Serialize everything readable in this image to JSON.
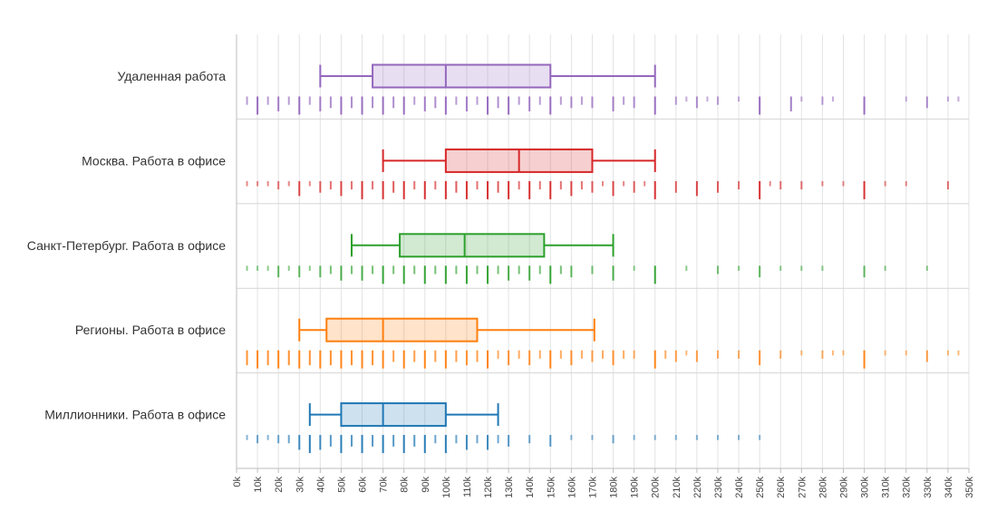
{
  "chart_data": {
    "type": "boxplot",
    "title": "",
    "xlabel": "",
    "ylabel": "",
    "xlim": [
      0,
      350000
    ],
    "x_ticks": [
      0,
      10000,
      20000,
      30000,
      40000,
      50000,
      60000,
      70000,
      80000,
      90000,
      100000,
      110000,
      120000,
      130000,
      140000,
      150000,
      160000,
      170000,
      180000,
      190000,
      200000,
      210000,
      220000,
      230000,
      240000,
      250000,
      260000,
      270000,
      280000,
      290000,
      300000,
      310000,
      320000,
      330000,
      340000,
      350000
    ],
    "x_tick_labels": [
      "0k",
      "10k",
      "20k",
      "30k",
      "40k",
      "50k",
      "60k",
      "70k",
      "80k",
      "90k",
      "100k",
      "110k",
      "120k",
      "130k",
      "140k",
      "150k",
      "160k",
      "170k",
      "180k",
      "190k",
      "200k",
      "210k",
      "220k",
      "230k",
      "240k",
      "250k",
      "260k",
      "270k",
      "280k",
      "290k",
      "300k",
      "310k",
      "320k",
      "330k",
      "340k",
      "350k"
    ],
    "grid": true,
    "series": [
      {
        "name": "Удаленная работа",
        "color": "#9467bd",
        "box": {
          "whisker_low": 40000,
          "q1": 65000,
          "median": 100000,
          "q3": 150000,
          "whisker_high": 200000
        },
        "rug": [
          {
            "x": 5000,
            "n": 2
          },
          {
            "x": 10000,
            "n": 5
          },
          {
            "x": 15000,
            "n": 2
          },
          {
            "x": 20000,
            "n": 4
          },
          {
            "x": 25000,
            "n": 2
          },
          {
            "x": 30000,
            "n": 5
          },
          {
            "x": 35000,
            "n": 2
          },
          {
            "x": 40000,
            "n": 4
          },
          {
            "x": 45000,
            "n": 3
          },
          {
            "x": 50000,
            "n": 5
          },
          {
            "x": 55000,
            "n": 3
          },
          {
            "x": 60000,
            "n": 5
          },
          {
            "x": 65000,
            "n": 3
          },
          {
            "x": 70000,
            "n": 5
          },
          {
            "x": 75000,
            "n": 3
          },
          {
            "x": 80000,
            "n": 5
          },
          {
            "x": 85000,
            "n": 2
          },
          {
            "x": 90000,
            "n": 4
          },
          {
            "x": 95000,
            "n": 3
          },
          {
            "x": 100000,
            "n": 5
          },
          {
            "x": 105000,
            "n": 2
          },
          {
            "x": 110000,
            "n": 4
          },
          {
            "x": 115000,
            "n": 2
          },
          {
            "x": 120000,
            "n": 5
          },
          {
            "x": 125000,
            "n": 3
          },
          {
            "x": 130000,
            "n": 5
          },
          {
            "x": 135000,
            "n": 2
          },
          {
            "x": 140000,
            "n": 4
          },
          {
            "x": 145000,
            "n": 2
          },
          {
            "x": 150000,
            "n": 5
          },
          {
            "x": 155000,
            "n": 2
          },
          {
            "x": 160000,
            "n": 3
          },
          {
            "x": 165000,
            "n": 2
          },
          {
            "x": 170000,
            "n": 3
          },
          {
            "x": 180000,
            "n": 4
          },
          {
            "x": 185000,
            "n": 2
          },
          {
            "x": 190000,
            "n": 3
          },
          {
            "x": 200000,
            "n": 5
          },
          {
            "x": 210000,
            "n": 2
          },
          {
            "x": 215000,
            "n": 1
          },
          {
            "x": 220000,
            "n": 3
          },
          {
            "x": 225000,
            "n": 1
          },
          {
            "x": 230000,
            "n": 2
          },
          {
            "x": 240000,
            "n": 1
          },
          {
            "x": 250000,
            "n": 5
          },
          {
            "x": 265000,
            "n": 4
          },
          {
            "x": 270000,
            "n": 1
          },
          {
            "x": 280000,
            "n": 2
          },
          {
            "x": 285000,
            "n": 1
          },
          {
            "x": 300000,
            "n": 5
          },
          {
            "x": 320000,
            "n": 1
          },
          {
            "x": 330000,
            "n": 3
          },
          {
            "x": 340000,
            "n": 1
          },
          {
            "x": 345000,
            "n": 1
          }
        ]
      },
      {
        "name": "Москва. Работа в офисе",
        "color": "#d62728",
        "box": {
          "whisker_low": 70000,
          "q1": 100000,
          "median": 135000,
          "q3": 170000,
          "whisker_high": 200000
        },
        "rug": [
          {
            "x": 5000,
            "n": 1
          },
          {
            "x": 10000,
            "n": 1
          },
          {
            "x": 15000,
            "n": 1
          },
          {
            "x": 20000,
            "n": 2
          },
          {
            "x": 25000,
            "n": 1
          },
          {
            "x": 30000,
            "n": 4
          },
          {
            "x": 35000,
            "n": 1
          },
          {
            "x": 40000,
            "n": 3
          },
          {
            "x": 45000,
            "n": 2
          },
          {
            "x": 50000,
            "n": 4
          },
          {
            "x": 55000,
            "n": 2
          },
          {
            "x": 60000,
            "n": 5
          },
          {
            "x": 65000,
            "n": 2
          },
          {
            "x": 70000,
            "n": 5
          },
          {
            "x": 75000,
            "n": 3
          },
          {
            "x": 80000,
            "n": 5
          },
          {
            "x": 85000,
            "n": 2
          },
          {
            "x": 90000,
            "n": 5
          },
          {
            "x": 95000,
            "n": 2
          },
          {
            "x": 100000,
            "n": 5
          },
          {
            "x": 105000,
            "n": 3
          },
          {
            "x": 110000,
            "n": 5
          },
          {
            "x": 115000,
            "n": 2
          },
          {
            "x": 120000,
            "n": 5
          },
          {
            "x": 125000,
            "n": 3
          },
          {
            "x": 130000,
            "n": 5
          },
          {
            "x": 135000,
            "n": 2
          },
          {
            "x": 140000,
            "n": 5
          },
          {
            "x": 145000,
            "n": 2
          },
          {
            "x": 150000,
            "n": 5
          },
          {
            "x": 155000,
            "n": 2
          },
          {
            "x": 160000,
            "n": 4
          },
          {
            "x": 165000,
            "n": 2
          },
          {
            "x": 170000,
            "n": 3
          },
          {
            "x": 175000,
            "n": 1
          },
          {
            "x": 180000,
            "n": 4
          },
          {
            "x": 185000,
            "n": 1
          },
          {
            "x": 190000,
            "n": 3
          },
          {
            "x": 195000,
            "n": 1
          },
          {
            "x": 200000,
            "n": 5
          },
          {
            "x": 210000,
            "n": 3
          },
          {
            "x": 220000,
            "n": 4
          },
          {
            "x": 230000,
            "n": 3
          },
          {
            "x": 240000,
            "n": 2
          },
          {
            "x": 250000,
            "n": 5
          },
          {
            "x": 255000,
            "n": 1
          },
          {
            "x": 260000,
            "n": 2
          },
          {
            "x": 270000,
            "n": 2
          },
          {
            "x": 280000,
            "n": 1
          },
          {
            "x": 290000,
            "n": 1
          },
          {
            "x": 300000,
            "n": 5
          },
          {
            "x": 310000,
            "n": 1
          },
          {
            "x": 320000,
            "n": 1
          },
          {
            "x": 340000,
            "n": 2
          }
        ]
      },
      {
        "name": "Санкт-Петербург. Работа в офисе",
        "color": "#2ca02c",
        "box": {
          "whisker_low": 55000,
          "q1": 78000,
          "median": 109000,
          "q3": 147000,
          "whisker_high": 180000
        },
        "rug": [
          {
            "x": 5000,
            "n": 1
          },
          {
            "x": 10000,
            "n": 1
          },
          {
            "x": 15000,
            "n": 1
          },
          {
            "x": 20000,
            "n": 3
          },
          {
            "x": 25000,
            "n": 1
          },
          {
            "x": 30000,
            "n": 3
          },
          {
            "x": 35000,
            "n": 1
          },
          {
            "x": 40000,
            "n": 3
          },
          {
            "x": 45000,
            "n": 2
          },
          {
            "x": 50000,
            "n": 4
          },
          {
            "x": 55000,
            "n": 2
          },
          {
            "x": 60000,
            "n": 4
          },
          {
            "x": 65000,
            "n": 2
          },
          {
            "x": 70000,
            "n": 5
          },
          {
            "x": 75000,
            "n": 2
          },
          {
            "x": 80000,
            "n": 5
          },
          {
            "x": 85000,
            "n": 2
          },
          {
            "x": 90000,
            "n": 5
          },
          {
            "x": 95000,
            "n": 2
          },
          {
            "x": 100000,
            "n": 5
          },
          {
            "x": 105000,
            "n": 2
          },
          {
            "x": 110000,
            "n": 5
          },
          {
            "x": 115000,
            "n": 2
          },
          {
            "x": 120000,
            "n": 5
          },
          {
            "x": 125000,
            "n": 2
          },
          {
            "x": 130000,
            "n": 4
          },
          {
            "x": 135000,
            "n": 2
          },
          {
            "x": 140000,
            "n": 4
          },
          {
            "x": 145000,
            "n": 2
          },
          {
            "x": 150000,
            "n": 5
          },
          {
            "x": 155000,
            "n": 2
          },
          {
            "x": 160000,
            "n": 3
          },
          {
            "x": 170000,
            "n": 2
          },
          {
            "x": 180000,
            "n": 4
          },
          {
            "x": 190000,
            "n": 1
          },
          {
            "x": 200000,
            "n": 5
          },
          {
            "x": 215000,
            "n": 1
          },
          {
            "x": 230000,
            "n": 2
          },
          {
            "x": 240000,
            "n": 1
          },
          {
            "x": 250000,
            "n": 3
          },
          {
            "x": 260000,
            "n": 1
          },
          {
            "x": 270000,
            "n": 1
          },
          {
            "x": 280000,
            "n": 1
          },
          {
            "x": 300000,
            "n": 3
          },
          {
            "x": 310000,
            "n": 1
          },
          {
            "x": 330000,
            "n": 1
          }
        ]
      },
      {
        "name": "Регионы. Работа в офисе",
        "color": "#ff7f0e",
        "box": {
          "whisker_low": 30000,
          "q1": 43000,
          "median": 70000,
          "q3": 115000,
          "whisker_high": 171000
        },
        "rug": [
          {
            "x": 5000,
            "n": 4
          },
          {
            "x": 10000,
            "n": 5
          },
          {
            "x": 15000,
            "n": 4
          },
          {
            "x": 20000,
            "n": 5
          },
          {
            "x": 25000,
            "n": 4
          },
          {
            "x": 30000,
            "n": 5
          },
          {
            "x": 35000,
            "n": 4
          },
          {
            "x": 40000,
            "n": 5
          },
          {
            "x": 45000,
            "n": 4
          },
          {
            "x": 50000,
            "n": 5
          },
          {
            "x": 55000,
            "n": 4
          },
          {
            "x": 60000,
            "n": 5
          },
          {
            "x": 65000,
            "n": 4
          },
          {
            "x": 70000,
            "n": 5
          },
          {
            "x": 75000,
            "n": 3
          },
          {
            "x": 80000,
            "n": 5
          },
          {
            "x": 85000,
            "n": 3
          },
          {
            "x": 90000,
            "n": 5
          },
          {
            "x": 95000,
            "n": 3
          },
          {
            "x": 100000,
            "n": 5
          },
          {
            "x": 105000,
            "n": 3
          },
          {
            "x": 110000,
            "n": 4
          },
          {
            "x": 115000,
            "n": 3
          },
          {
            "x": 120000,
            "n": 5
          },
          {
            "x": 125000,
            "n": 2
          },
          {
            "x": 130000,
            "n": 4
          },
          {
            "x": 135000,
            "n": 2
          },
          {
            "x": 140000,
            "n": 4
          },
          {
            "x": 145000,
            "n": 2
          },
          {
            "x": 150000,
            "n": 5
          },
          {
            "x": 155000,
            "n": 2
          },
          {
            "x": 160000,
            "n": 4
          },
          {
            "x": 165000,
            "n": 2
          },
          {
            "x": 170000,
            "n": 3
          },
          {
            "x": 175000,
            "n": 2
          },
          {
            "x": 180000,
            "n": 4
          },
          {
            "x": 185000,
            "n": 2
          },
          {
            "x": 190000,
            "n": 2
          },
          {
            "x": 200000,
            "n": 5
          },
          {
            "x": 205000,
            "n": 2
          },
          {
            "x": 210000,
            "n": 3
          },
          {
            "x": 215000,
            "n": 1
          },
          {
            "x": 220000,
            "n": 3
          },
          {
            "x": 230000,
            "n": 2
          },
          {
            "x": 240000,
            "n": 2
          },
          {
            "x": 250000,
            "n": 4
          },
          {
            "x": 260000,
            "n": 2
          },
          {
            "x": 270000,
            "n": 1
          },
          {
            "x": 280000,
            "n": 2
          },
          {
            "x": 285000,
            "n": 1
          },
          {
            "x": 290000,
            "n": 1
          },
          {
            "x": 300000,
            "n": 5
          },
          {
            "x": 310000,
            "n": 1
          },
          {
            "x": 320000,
            "n": 1
          },
          {
            "x": 330000,
            "n": 3
          },
          {
            "x": 340000,
            "n": 1
          },
          {
            "x": 345000,
            "n": 1
          }
        ]
      },
      {
        "name": "Миллионники. Работа в офисе",
        "color": "#1f77b4",
        "box": {
          "whisker_low": 35000,
          "q1": 50000,
          "median": 70000,
          "q3": 100000,
          "whisker_high": 125000
        },
        "rug": [
          {
            "x": 5000,
            "n": 1
          },
          {
            "x": 10000,
            "n": 2
          },
          {
            "x": 15000,
            "n": 1
          },
          {
            "x": 20000,
            "n": 2
          },
          {
            "x": 25000,
            "n": 2
          },
          {
            "x": 30000,
            "n": 4
          },
          {
            "x": 35000,
            "n": 5
          },
          {
            "x": 40000,
            "n": 4
          },
          {
            "x": 45000,
            "n": 3
          },
          {
            "x": 50000,
            "n": 5
          },
          {
            "x": 55000,
            "n": 3
          },
          {
            "x": 60000,
            "n": 5
          },
          {
            "x": 65000,
            "n": 3
          },
          {
            "x": 70000,
            "n": 5
          },
          {
            "x": 75000,
            "n": 3
          },
          {
            "x": 80000,
            "n": 5
          },
          {
            "x": 85000,
            "n": 3
          },
          {
            "x": 90000,
            "n": 5
          },
          {
            "x": 95000,
            "n": 2
          },
          {
            "x": 100000,
            "n": 5
          },
          {
            "x": 105000,
            "n": 2
          },
          {
            "x": 110000,
            "n": 4
          },
          {
            "x": 115000,
            "n": 2
          },
          {
            "x": 120000,
            "n": 4
          },
          {
            "x": 125000,
            "n": 2
          },
          {
            "x": 130000,
            "n": 3
          },
          {
            "x": 140000,
            "n": 2
          },
          {
            "x": 150000,
            "n": 3
          },
          {
            "x": 160000,
            "n": 1
          },
          {
            "x": 170000,
            "n": 1
          },
          {
            "x": 180000,
            "n": 2
          },
          {
            "x": 190000,
            "n": 1
          },
          {
            "x": 200000,
            "n": 1
          },
          {
            "x": 210000,
            "n": 1
          },
          {
            "x": 220000,
            "n": 1
          },
          {
            "x": 230000,
            "n": 1
          },
          {
            "x": 240000,
            "n": 1
          },
          {
            "x": 250000,
            "n": 1
          }
        ]
      }
    ]
  }
}
